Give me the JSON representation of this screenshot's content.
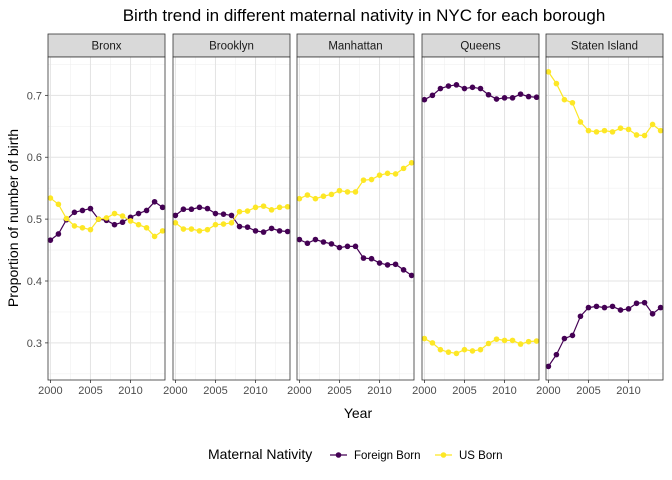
{
  "chart_data": {
    "type": "line",
    "title": "Birth trend in different maternal nativity in NYC for each borough",
    "xlabel": "Year",
    "ylabel": "Proportion of number of birth",
    "xlim": [
      1999.7,
      2014.3
    ],
    "ylim": [
      0.24,
      0.762
    ],
    "x_ticks": [
      2000,
      2005,
      2010
    ],
    "x_tick_labels": [
      "2000",
      "2005",
      "2010"
    ],
    "y_ticks": [
      0.3,
      0.4,
      0.5,
      0.6,
      0.7
    ],
    "y_tick_labels": [
      "0.3",
      "0.4",
      "0.5",
      "0.6",
      "0.7"
    ],
    "grid": true,
    "legend": {
      "title": "Maternal Nativity",
      "position": "bottom",
      "entries": [
        "Foreign Born",
        "US Born"
      ]
    },
    "x": [
      2000,
      2001,
      2002,
      2003,
      2004,
      2005,
      2006,
      2007,
      2008,
      2009,
      2010,
      2011,
      2012,
      2013,
      2014
    ],
    "panels": [
      {
        "name": "Bronx",
        "series": [
          {
            "name": "Foreign Born",
            "color": "#440154",
            "values": [
              0.466,
              0.476,
              0.499,
              0.511,
              0.514,
              0.517,
              0.5,
              0.498,
              0.491,
              0.495,
              0.503,
              0.509,
              0.514,
              0.528,
              0.519
            ]
          },
          {
            "name": "US Born",
            "color": "#FDE725",
            "values": [
              0.534,
              0.524,
              0.501,
              0.489,
              0.486,
              0.483,
              0.5,
              0.502,
              0.509,
              0.505,
              0.497,
              0.491,
              0.486,
              0.472,
              0.481
            ]
          }
        ]
      },
      {
        "name": "Brooklyn",
        "series": [
          {
            "name": "Foreign Born",
            "color": "#440154",
            "values": [
              0.506,
              0.516,
              0.516,
              0.519,
              0.517,
              0.509,
              0.508,
              0.506,
              0.488,
              0.487,
              0.481,
              0.479,
              0.485,
              0.481,
              0.48
            ]
          },
          {
            "name": "US Born",
            "color": "#FDE725",
            "values": [
              0.494,
              0.484,
              0.484,
              0.481,
              0.483,
              0.491,
              0.492,
              0.494,
              0.512,
              0.513,
              0.519,
              0.521,
              0.515,
              0.519,
              0.52
            ]
          }
        ]
      },
      {
        "name": "Manhattan",
        "series": [
          {
            "name": "Foreign Born",
            "color": "#440154",
            "values": [
              0.467,
              0.461,
              0.467,
              0.463,
              0.46,
              0.454,
              0.456,
              0.456,
              0.437,
              0.436,
              0.429,
              0.426,
              0.427,
              0.418,
              0.409
            ]
          },
          {
            "name": "US Born",
            "color": "#FDE725",
            "values": [
              0.533,
              0.539,
              0.533,
              0.537,
              0.54,
              0.546,
              0.544,
              0.544,
              0.563,
              0.564,
              0.571,
              0.574,
              0.573,
              0.582,
              0.591
            ]
          }
        ]
      },
      {
        "name": "Queens",
        "series": [
          {
            "name": "Foreign Born",
            "color": "#440154",
            "values": [
              0.693,
              0.7,
              0.711,
              0.715,
              0.717,
              0.711,
              0.713,
              0.711,
              0.701,
              0.694,
              0.696,
              0.696,
              0.702,
              0.698,
              0.697
            ]
          },
          {
            "name": "US Born",
            "color": "#FDE725",
            "values": [
              0.307,
              0.3,
              0.289,
              0.285,
              0.283,
              0.289,
              0.287,
              0.289,
              0.299,
              0.306,
              0.304,
              0.304,
              0.298,
              0.302,
              0.303
            ]
          }
        ]
      },
      {
        "name": "Staten Island",
        "series": [
          {
            "name": "Foreign Born",
            "color": "#440154",
            "values": [
              0.262,
              0.281,
              0.307,
              0.312,
              0.343,
              0.357,
              0.359,
              0.357,
              0.359,
              0.353,
              0.355,
              0.364,
              0.365,
              0.347,
              0.357
            ]
          },
          {
            "name": "US Born",
            "color": "#FDE725",
            "values": [
              0.738,
              0.719,
              0.693,
              0.688,
              0.657,
              0.643,
              0.641,
              0.643,
              0.641,
              0.647,
              0.645,
              0.636,
              0.635,
              0.653,
              0.643
            ]
          }
        ]
      }
    ]
  }
}
